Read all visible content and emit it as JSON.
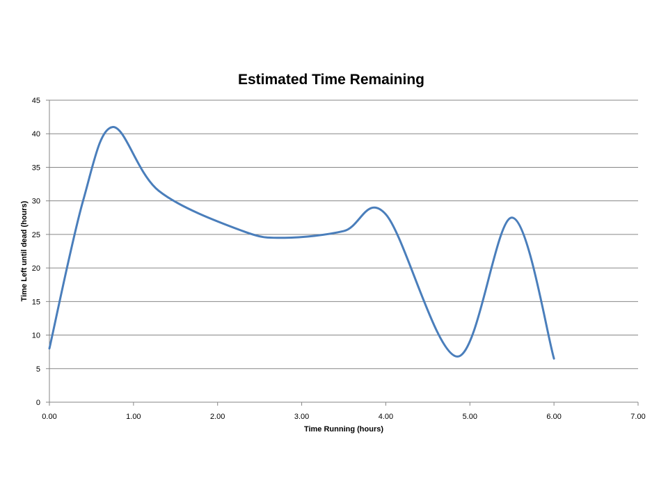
{
  "chart_data": {
    "type": "line",
    "title": "Estimated Time Remaining",
    "xlabel": "Time Running  (hours)",
    "ylabel": "Time Left until dead  (hours)",
    "xlim": [
      0,
      7
    ],
    "ylim": [
      0,
      45
    ],
    "x_ticks": [
      "0.00",
      "1.00",
      "2.00",
      "3.00",
      "4.00",
      "5.00",
      "6.00",
      "7.00"
    ],
    "y_ticks": [
      "0",
      "5",
      "10",
      "15",
      "20",
      "25",
      "30",
      "35",
      "40",
      "45"
    ],
    "grid": "horizontal",
    "legend": "none",
    "smooth": true,
    "series": [
      {
        "color": "#4a7ebb",
        "x": [
          0.0,
          0.4,
          0.75,
          1.3,
          2.3,
          2.8,
          3.5,
          4.0,
          4.85,
          5.5,
          6.0
        ],
        "y": [
          8.0,
          30.0,
          41.0,
          31.5,
          25.5,
          24.5,
          25.5,
          28.0,
          6.8,
          27.5,
          6.5
        ]
      }
    ]
  }
}
